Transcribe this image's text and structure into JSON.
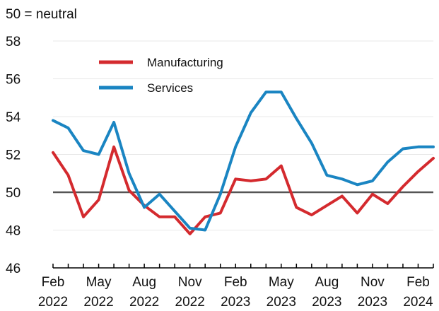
{
  "chart_data": {
    "type": "line",
    "y_note": "50 = neutral",
    "ylim": [
      46,
      58
    ],
    "yticks": [
      46,
      48,
      50,
      52,
      54,
      56,
      58
    ],
    "reference_line": 50,
    "grid": true,
    "legend_position": "top-left",
    "x_start": "2022-02",
    "x": [
      "2022-02",
      "2022-03",
      "2022-04",
      "2022-05",
      "2022-06",
      "2022-07",
      "2022-08",
      "2022-09",
      "2022-10",
      "2022-11",
      "2022-12",
      "2023-01",
      "2023-02",
      "2023-03",
      "2023-04",
      "2023-05",
      "2023-06",
      "2023-07",
      "2023-08",
      "2023-09",
      "2023-10",
      "2023-11",
      "2023-12",
      "2024-01",
      "2024-02",
      "2024-03"
    ],
    "x_tick_labels": [
      {
        "month": "Feb",
        "year": "2022",
        "index": 0
      },
      {
        "month": "May",
        "year": "2022",
        "index": 3
      },
      {
        "month": "Aug",
        "year": "2022",
        "index": 6
      },
      {
        "month": "Nov",
        "year": "2022",
        "index": 9
      },
      {
        "month": "Feb",
        "year": "2023",
        "index": 12
      },
      {
        "month": "May",
        "year": "2023",
        "index": 15
      },
      {
        "month": "Aug",
        "year": "2023",
        "index": 18
      },
      {
        "month": "Nov",
        "year": "2023",
        "index": 21
      },
      {
        "month": "Feb",
        "year": "2024",
        "index": 24
      }
    ],
    "series": [
      {
        "name": "Manufacturing",
        "color": "#d42a2e",
        "values": [
          52.1,
          50.9,
          48.7,
          49.6,
          52.4,
          50.1,
          49.3,
          48.7,
          48.7,
          47.8,
          48.7,
          48.9,
          50.7,
          50.6,
          50.7,
          51.4,
          49.2,
          48.8,
          49.3,
          49.8,
          48.9,
          49.9,
          49.4,
          50.3,
          51.1,
          51.8
        ]
      },
      {
        "name": "Services",
        "color": "#1a85c2",
        "values": [
          53.8,
          53.4,
          52.2,
          52.0,
          53.7,
          51.0,
          49.2,
          49.9,
          49.0,
          48.1,
          48.0,
          49.9,
          52.4,
          54.2,
          55.3,
          55.3,
          53.9,
          52.6,
          50.9,
          50.7,
          50.4,
          50.6,
          51.6,
          52.3,
          52.4,
          52.4
        ]
      }
    ]
  }
}
